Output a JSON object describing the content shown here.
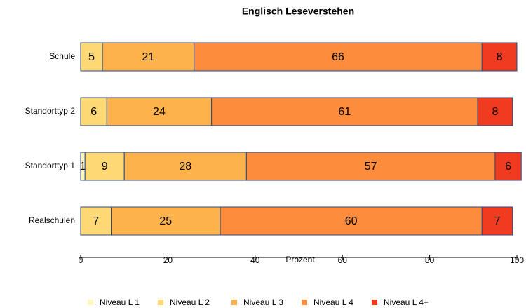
{
  "chart_data": {
    "type": "stacked_bar_horizontal",
    "title": "Englisch Leseverstehen",
    "categories": [
      "Schule",
      "Standorttyp 2",
      "Standorttyp 1",
      "Realschulen"
    ],
    "series": [
      {
        "name": "Niveau L 1",
        "color": "#fff7bc",
        "values": [
          0,
          0,
          1,
          0
        ],
        "value_labels": [
          null,
          null,
          "1",
          null
        ]
      },
      {
        "name": "Niveau L 2",
        "color": "#fed976",
        "values": [
          5,
          6,
          9,
          7
        ]
      },
      {
        "name": "Niveau L 3",
        "color": "#feb24c",
        "values": [
          21,
          24,
          28,
          25
        ]
      },
      {
        "name": "Niveau L 4",
        "color": "#fd8d3c",
        "values": [
          66,
          61,
          57,
          60
        ]
      },
      {
        "name": "Niveau L 4+",
        "color": "#f03b20",
        "values": [
          8,
          8,
          6,
          7
        ]
      }
    ],
    "xlabel": "Prozent",
    "xlim": [
      0,
      100
    ],
    "xticks": [
      0,
      20,
      40,
      60,
      80,
      100
    ]
  }
}
